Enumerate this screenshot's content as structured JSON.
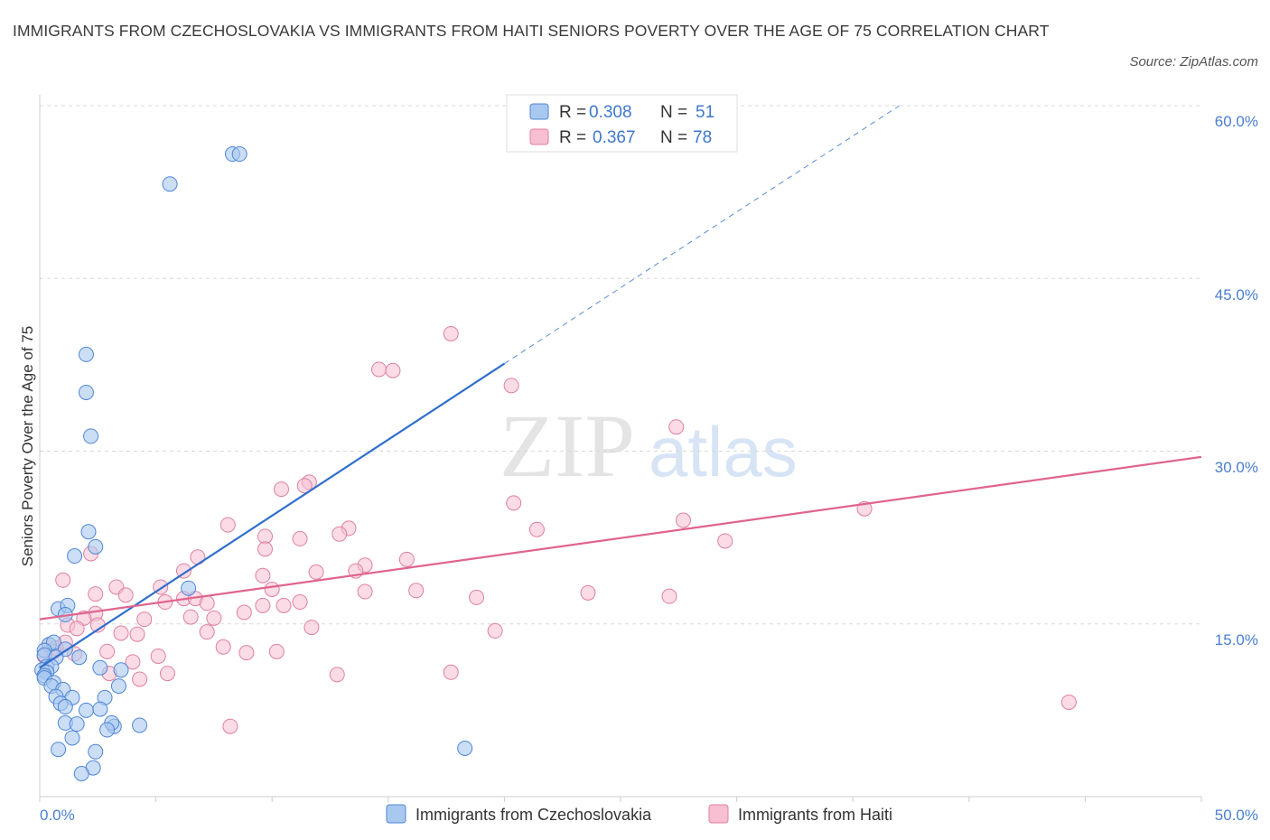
{
  "title": "IMMIGRANTS FROM CZECHOSLOVAKIA VS IMMIGRANTS FROM HAITI SENIORS POVERTY OVER THE AGE OF 75 CORRELATION CHART",
  "source": "Source: ZipAtlas.com",
  "watermark": {
    "zip": "ZIP",
    "atlas": "atlas"
  },
  "colors": {
    "series1_fill": "#a9c8f0",
    "series1_stroke": "#4f86d6",
    "series1_line": "#2f6fcc",
    "series2_fill": "#f7bfd1",
    "series2_stroke": "#e07fa0",
    "series2_line": "#e0648d",
    "tick_text": "#4a7fcf",
    "grid": "#d9d9d9"
  },
  "legend": {
    "rows": [
      {
        "r_label": "R =",
        "r_value": "0.308",
        "n_label": "N =",
        "n_value": "51"
      },
      {
        "r_label": "R =",
        "r_value": "0.367",
        "n_label": "N =",
        "n_value": "78"
      }
    ]
  },
  "chart_data": {
    "type": "scatter",
    "xlabel": "",
    "ylabel": "Seniors Poverty Over the Age of 75",
    "xlim": [
      0,
      50
    ],
    "ylim": [
      0,
      60
    ],
    "x_tick_labels": [
      "0.0%",
      "50.0%"
    ],
    "y_ticks": [
      15,
      30,
      45,
      60
    ],
    "y_tick_labels": [
      "15.0%",
      "30.0%",
      "45.0%",
      "60.0%"
    ],
    "grid": true,
    "legend_position": "top-center",
    "series": [
      {
        "name": "Immigrants from Czechoslovakia",
        "R": 0.308,
        "N": 51,
        "trend": {
          "x0": 0,
          "y0": 11.2,
          "x1": 20,
          "y1": 37.6,
          "dashed_to_x": 37,
          "dashed_to_y": 60
        },
        "points": [
          [
            8.3,
            55.8
          ],
          [
            8.6,
            55.8
          ],
          [
            5.6,
            53.2
          ],
          [
            2,
            38.4
          ],
          [
            2,
            35.1
          ],
          [
            2.2,
            31.3
          ],
          [
            2.1,
            23
          ],
          [
            2.4,
            21.7
          ],
          [
            1.5,
            20.9
          ],
          [
            6.4,
            18.1
          ],
          [
            0.8,
            16.3
          ],
          [
            1.2,
            16.6
          ],
          [
            1.1,
            15.8
          ],
          [
            0.4,
            13.2
          ],
          [
            0.6,
            13.4
          ],
          [
            0.2,
            12.7
          ],
          [
            1.1,
            12.8
          ],
          [
            0.2,
            12.3
          ],
          [
            0.7,
            12.1
          ],
          [
            1.7,
            12.1
          ],
          [
            0.3,
            11.3
          ],
          [
            0.5,
            11.3
          ],
          [
            0.1,
            11
          ],
          [
            0.3,
            10.8
          ],
          [
            2.6,
            11.2
          ],
          [
            3.5,
            11
          ],
          [
            0.2,
            10.5
          ],
          [
            0.2,
            10.3
          ],
          [
            0.6,
            9.9
          ],
          [
            0.5,
            9.6
          ],
          [
            3.4,
            9.6
          ],
          [
            1,
            9.3
          ],
          [
            0.7,
            8.7
          ],
          [
            1.4,
            8.6
          ],
          [
            2.8,
            8.6
          ],
          [
            0.9,
            8.1
          ],
          [
            1.1,
            7.8
          ],
          [
            2,
            7.5
          ],
          [
            2.6,
            7.6
          ],
          [
            1.1,
            6.4
          ],
          [
            1.6,
            6.3
          ],
          [
            3.2,
            6.1
          ],
          [
            4.3,
            6.2
          ],
          [
            3.1,
            6.4
          ],
          [
            2.9,
            5.8
          ],
          [
            1.4,
            5.1
          ],
          [
            0.8,
            4.1
          ],
          [
            2.4,
            3.9
          ],
          [
            18.3,
            4.2
          ],
          [
            2.3,
            2.5
          ],
          [
            1.8,
            2
          ]
        ]
      },
      {
        "name": "Immigrants from Haiti",
        "R": 0.367,
        "N": 78,
        "trend": {
          "x0": 0,
          "y0": 15.4,
          "x1": 50,
          "y1": 29.5
        },
        "points": [
          [
            17.7,
            40.2
          ],
          [
            14.6,
            37.1
          ],
          [
            15.2,
            37
          ],
          [
            20.3,
            35.7
          ],
          [
            27.4,
            32.1
          ],
          [
            11.6,
            27.3
          ],
          [
            10.4,
            26.7
          ],
          [
            11.4,
            27
          ],
          [
            20.4,
            25.5
          ],
          [
            35.5,
            25
          ],
          [
            27.7,
            24
          ],
          [
            8.1,
            23.6
          ],
          [
            13.3,
            23.3
          ],
          [
            21.4,
            23.2
          ],
          [
            12.9,
            22.8
          ],
          [
            11.2,
            22.4
          ],
          [
            9.7,
            22.6
          ],
          [
            29.5,
            22.2
          ],
          [
            9.7,
            21.5
          ],
          [
            2.2,
            21.1
          ],
          [
            6.8,
            20.8
          ],
          [
            15.8,
            20.6
          ],
          [
            14,
            20.1
          ],
          [
            13.6,
            19.6
          ],
          [
            11.9,
            19.5
          ],
          [
            9.6,
            19.2
          ],
          [
            6.2,
            19.6
          ],
          [
            1,
            18.8
          ],
          [
            3.3,
            18.2
          ],
          [
            5.2,
            18.2
          ],
          [
            10,
            18
          ],
          [
            14,
            17.8
          ],
          [
            16.2,
            17.9
          ],
          [
            23.6,
            17.7
          ],
          [
            27.1,
            17.4
          ],
          [
            18.8,
            17.3
          ],
          [
            2.4,
            17.6
          ],
          [
            3.7,
            17.5
          ],
          [
            6.2,
            17.2
          ],
          [
            6.7,
            17.2
          ],
          [
            7.2,
            16.8
          ],
          [
            5.4,
            16.9
          ],
          [
            10.5,
            16.6
          ],
          [
            9.6,
            16.6
          ],
          [
            11.2,
            16.9
          ],
          [
            8.8,
            16
          ],
          [
            2.4,
            15.9
          ],
          [
            1.9,
            15.5
          ],
          [
            4.5,
            15.4
          ],
          [
            6.5,
            15.6
          ],
          [
            7.5,
            15.5
          ],
          [
            1.2,
            14.9
          ],
          [
            2.5,
            14.9
          ],
          [
            1.6,
            14.6
          ],
          [
            3.5,
            14.2
          ],
          [
            4.2,
            14.1
          ],
          [
            11.7,
            14.7
          ],
          [
            19.6,
            14.4
          ],
          [
            1.1,
            13.4
          ],
          [
            7.2,
            14.3
          ],
          [
            0.4,
            13.2
          ],
          [
            0.7,
            12.9
          ],
          [
            2.9,
            12.6
          ],
          [
            7.9,
            13
          ],
          [
            10.2,
            12.6
          ],
          [
            8.9,
            12.5
          ],
          [
            5.1,
            12.2
          ],
          [
            4,
            11.7
          ],
          [
            17.7,
            10.8
          ],
          [
            3,
            10.7
          ],
          [
            12.8,
            10.6
          ],
          [
            5.5,
            10.7
          ],
          [
            4.3,
            10.2
          ],
          [
            8.2,
            6.1
          ],
          [
            44.3,
            8.2
          ],
          [
            0.2,
            12.2
          ],
          [
            0.6,
            12.6
          ],
          [
            1.5,
            12.4
          ]
        ]
      }
    ]
  }
}
